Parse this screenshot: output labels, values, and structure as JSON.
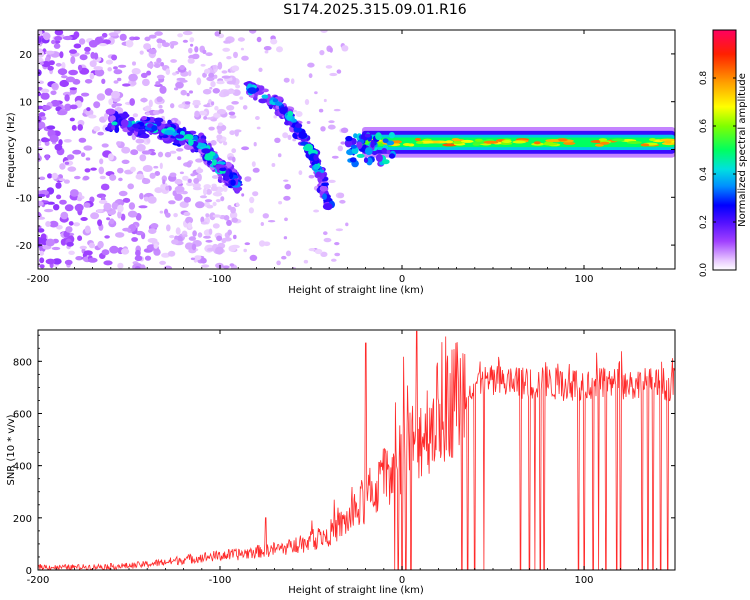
{
  "figure": {
    "title": "S174.2025.315.09.01.R16"
  },
  "chart_data": [
    {
      "type": "heatmap",
      "title": "S174.2025.315.09.01.R16",
      "xlabel": "Height of straight line (km)",
      "ylabel": "Frequency (Hz)",
      "xlim": [
        -200,
        150
      ],
      "ylim": [
        -25,
        25
      ],
      "xticks": [
        -200,
        -100,
        0,
        100
      ],
      "yticks": [
        -20,
        -10,
        0,
        10,
        20
      ],
      "colorbar": {
        "label": "Normalized spectral amplitude",
        "range": [
          0,
          1
        ],
        "ticks": [
          0.0,
          0.2,
          0.4,
          0.6,
          0.8
        ]
      },
      "features": {
        "stable_line": {
          "x_range": [
            -30,
            150
          ],
          "frequency_hz": 1.5,
          "peak_amplitude": 0.9
        },
        "main_descending_branch": {
          "points": [
            [
              -160,
              6
            ],
            [
              -130,
              4
            ],
            [
              -110,
              1
            ],
            [
              -100,
              -4
            ],
            [
              -90,
              -7
            ]
          ]
        },
        "upper_descending_branch": {
          "points": [
            [
              -85,
              13
            ],
            [
              -70,
              10
            ],
            [
              -60,
              6
            ],
            [
              -50,
              0
            ],
            [
              -45,
              -5
            ],
            [
              -40,
              -12
            ]
          ]
        },
        "noise_region_x": [
          -200,
          -140
        ]
      }
    },
    {
      "type": "line",
      "xlabel": "Height of straight line (km)",
      "ylabel": "SNR (10 * v/v)",
      "xlim": [
        -200,
        150
      ],
      "ylim": [
        0,
        920
      ],
      "xticks": [
        -200,
        -100,
        0,
        100
      ],
      "yticks": [
        0,
        200,
        400,
        600,
        800
      ],
      "color": "#ff2a2a",
      "series": [
        {
          "x": [
            -200,
            -190,
            -180,
            -170,
            -160,
            -150,
            -140,
            -130,
            -120,
            -110,
            -100,
            -90,
            -80,
            -70,
            -60,
            -50,
            -40,
            -30,
            -20,
            -10,
            0,
            10,
            20,
            30,
            40,
            50,
            60,
            70,
            80,
            90,
            100,
            110,
            120,
            130,
            140,
            150
          ],
          "values": [
            12,
            10,
            11,
            12,
            14,
            16,
            22,
            30,
            40,
            48,
            55,
            60,
            70,
            80,
            90,
            110,
            140,
            190,
            260,
            350,
            450,
            520,
            600,
            670,
            720,
            720,
            718,
            715,
            714,
            712,
            715,
            712,
            710,
            712,
            712,
            715
          ],
          "peaks": [
            [
              -75,
              200
            ],
            [
              -20,
              870
            ],
            [
              0,
              850
            ],
            [
              8,
              915
            ],
            [
              97,
              900
            ]
          ],
          "dropouts_to_zero_x": [
            -4,
            -2,
            0,
            2,
            5,
            33,
            36,
            40,
            45,
            65,
            70,
            73,
            76,
            78,
            97,
            100,
            105,
            108,
            112,
            118,
            120,
            132,
            135,
            138,
            142,
            146
          ]
        }
      ]
    }
  ]
}
